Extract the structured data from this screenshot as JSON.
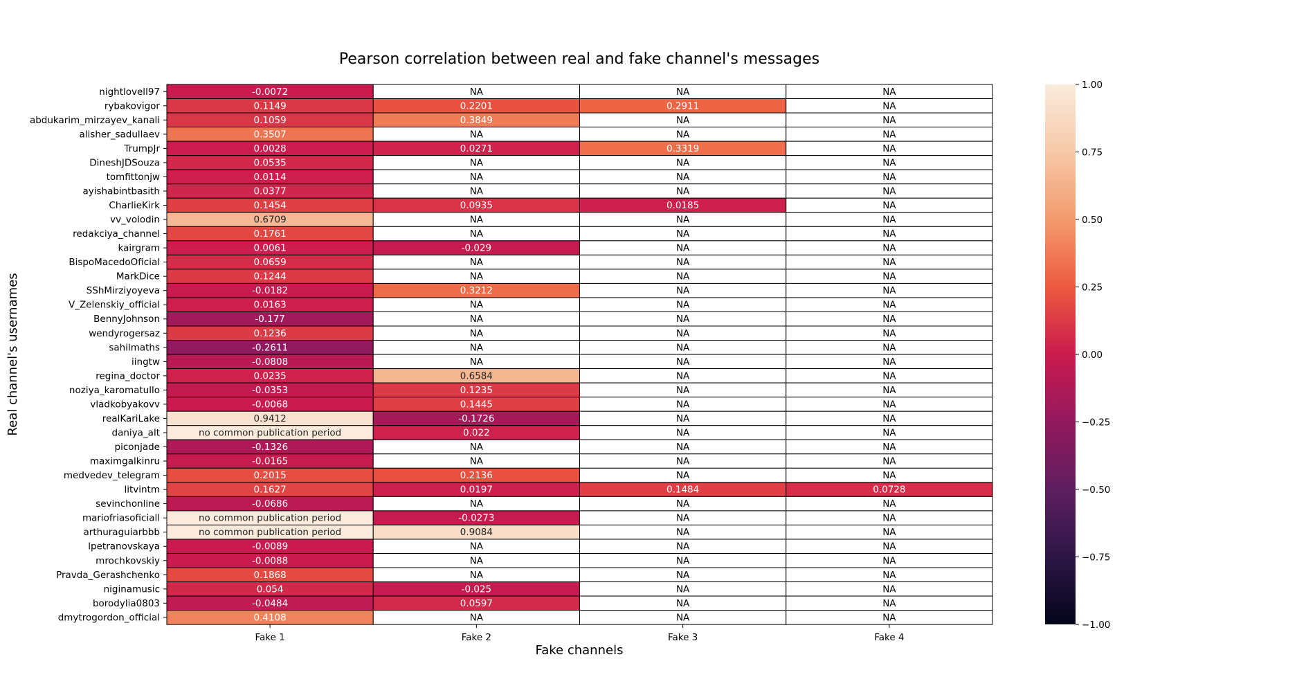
{
  "chart_data": {
    "type": "heatmap",
    "title": "Pearson correlation between real and fake channel's messages",
    "xlabel": "Fake channels",
    "ylabel": "Real channel's usernames",
    "columns": [
      "Fake 1",
      "Fake 2",
      "Fake 3",
      "Fake 4"
    ],
    "rows": [
      "nightlovell97",
      "rybakovigor",
      "abdukarim_mirzayev_kanali",
      "alisher_sadullaev",
      "TrumpJr",
      "DineshJDSouza",
      "tomfittonjw",
      "ayishabintbasith",
      "CharlieKirk",
      "vv_volodin",
      "redakciya_channel",
      "kairgram",
      "BispoMacedoOficial",
      "MarkDice",
      "SShMirziyoyeva",
      "V_Zelenskiy_official",
      "BennyJohnson",
      "wendyrogersaz",
      "sahilmaths",
      "iingtw",
      "regina_doctor",
      "noziya_karomatullo",
      "vladkobyakovv",
      "realKariLake",
      "daniya_alt",
      "piconjade",
      "maximgalkinru",
      "medvedev_telegram",
      "litvintm",
      "sevinchonline",
      "mariofriasoficiall",
      "arthuraguiarbbb",
      "lpetranovskaya",
      "mrochkovskiy",
      "Pravda_Gerashchenko",
      "niginamusic",
      "borodylia0803",
      "dmytrogordon_official"
    ],
    "cells": [
      [
        "-0.0072",
        "NA",
        "NA",
        "NA"
      ],
      [
        "0.1149",
        "0.2201",
        "0.2911",
        "NA"
      ],
      [
        "0.1059",
        "0.3849",
        "NA",
        "NA"
      ],
      [
        "0.3507",
        "NA",
        "NA",
        "NA"
      ],
      [
        "0.0028",
        "0.0271",
        "0.3319",
        "NA"
      ],
      [
        "0.0535",
        "NA",
        "NA",
        "NA"
      ],
      [
        "0.0114",
        "NA",
        "NA",
        "NA"
      ],
      [
        "0.0377",
        "NA",
        "NA",
        "NA"
      ],
      [
        "0.1454",
        "0.0935",
        "0.0185",
        "NA"
      ],
      [
        "0.6709",
        "NA",
        "NA",
        "NA"
      ],
      [
        "0.1761",
        "NA",
        "NA",
        "NA"
      ],
      [
        "0.0061",
        "-0.029",
        "NA",
        "NA"
      ],
      [
        "0.0659",
        "NA",
        "NA",
        "NA"
      ],
      [
        "0.1244",
        "NA",
        "NA",
        "NA"
      ],
      [
        "-0.0182",
        "0.3212",
        "NA",
        "NA"
      ],
      [
        "0.0163",
        "NA",
        "NA",
        "NA"
      ],
      [
        "-0.177",
        "NA",
        "NA",
        "NA"
      ],
      [
        "0.1236",
        "NA",
        "NA",
        "NA"
      ],
      [
        "-0.2611",
        "NA",
        "NA",
        "NA"
      ],
      [
        "-0.0808",
        "NA",
        "NA",
        "NA"
      ],
      [
        "0.0235",
        "0.6584",
        "NA",
        "NA"
      ],
      [
        "-0.0353",
        "0.1235",
        "NA",
        "NA"
      ],
      [
        "-0.0068",
        "0.1445",
        "NA",
        "NA"
      ],
      [
        "0.9412",
        "-0.1726",
        "NA",
        "NA"
      ],
      [
        "no common publication period",
        "0.022",
        "NA",
        "NA"
      ],
      [
        "-0.1326",
        "NA",
        "NA",
        "NA"
      ],
      [
        "-0.0165",
        "NA",
        "NA",
        "NA"
      ],
      [
        "0.2015",
        "0.2136",
        "NA",
        "NA"
      ],
      [
        "0.1627",
        "0.0197",
        "0.1484",
        "0.0728"
      ],
      [
        "-0.0686",
        "NA",
        "NA",
        "NA"
      ],
      [
        "no common publication period",
        "-0.0273",
        "NA",
        "NA"
      ],
      [
        "no common publication period",
        "0.9084",
        "NA",
        "NA"
      ],
      [
        "-0.0089",
        "NA",
        "NA",
        "NA"
      ],
      [
        "-0.0088",
        "NA",
        "NA",
        "NA"
      ],
      [
        "0.1868",
        "NA",
        "NA",
        "NA"
      ],
      [
        "0.054",
        "-0.025",
        "NA",
        "NA"
      ],
      [
        "-0.0484",
        "0.0597",
        "NA",
        "NA"
      ],
      [
        "0.4108",
        "NA",
        "NA",
        "NA"
      ]
    ],
    "colorbar": {
      "ticks": [
        "1.00",
        "0.75",
        "0.50",
        "0.25",
        "0.00",
        "−0.25",
        "−0.50",
        "−0.75",
        "−1.00"
      ],
      "range": [
        -1,
        1
      ],
      "colormap": "rocket"
    },
    "special_cell_color": "#faebdd",
    "na_cell_color": "#ffffff",
    "grid": true
  }
}
